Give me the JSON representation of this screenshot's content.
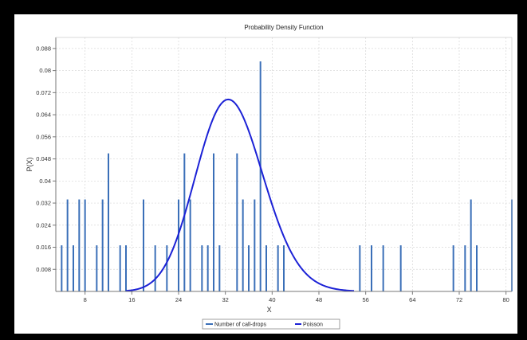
{
  "colors": {
    "bars": "#3a6fb8",
    "curve": "#1c22d6",
    "grid": "#d8d8d8",
    "axis": "#777777",
    "frame": "#000000",
    "background": "#ffffff"
  },
  "chart_data": {
    "type": "bar",
    "title": "Probability Density Function",
    "xlabel": "X",
    "ylabel": "P(X)",
    "xlim": [
      3,
      81
    ],
    "ylim": [
      0,
      0.092
    ],
    "x_ticks": [
      8,
      16,
      24,
      32,
      40,
      48,
      56,
      64,
      72,
      80
    ],
    "y_ticks": [
      0.008,
      0.016,
      0.024,
      0.032,
      0.04,
      0.048,
      0.056,
      0.064,
      0.072,
      0.08,
      0.088
    ],
    "y_tick_labels": [
      "0.008",
      "0.016",
      "0.024",
      "0.032",
      "0.04",
      "0.048",
      "0.056",
      "0.064",
      "0.072",
      "0.08",
      "0.088"
    ],
    "grid": true,
    "legend_position": "bottom-center",
    "series": [
      {
        "name": "Number of call-drops",
        "kind": "bar",
        "points": [
          [
            4,
            0.0167
          ],
          [
            5,
            0.0333
          ],
          [
            6,
            0.0167
          ],
          [
            7,
            0.0333
          ],
          [
            8,
            0.0333
          ],
          [
            10,
            0.0167
          ],
          [
            11,
            0.0333
          ],
          [
            12,
            0.05
          ],
          [
            14,
            0.0167
          ],
          [
            15,
            0.0167
          ],
          [
            18,
            0.0333
          ],
          [
            20,
            0.0167
          ],
          [
            22,
            0.0167
          ],
          [
            24,
            0.0333
          ],
          [
            25,
            0.05
          ],
          [
            26,
            0.0333
          ],
          [
            28,
            0.0167
          ],
          [
            29,
            0.0167
          ],
          [
            30,
            0.05
          ],
          [
            31,
            0.0167
          ],
          [
            34,
            0.05
          ],
          [
            35,
            0.0333
          ],
          [
            36,
            0.0167
          ],
          [
            37,
            0.0333
          ],
          [
            38,
            0.0833
          ],
          [
            39,
            0.0167
          ],
          [
            41,
            0.0167
          ],
          [
            42,
            0.0167
          ],
          [
            55,
            0.0167
          ],
          [
            57,
            0.0167
          ],
          [
            59,
            0.0167
          ],
          [
            62,
            0.0167
          ],
          [
            71,
            0.0167
          ],
          [
            73,
            0.0167
          ],
          [
            74,
            0.0333
          ],
          [
            75,
            0.0167
          ],
          [
            81,
            0.0333
          ]
        ]
      },
      {
        "name": "Poisson",
        "kind": "line",
        "lambda": 33
      }
    ]
  }
}
